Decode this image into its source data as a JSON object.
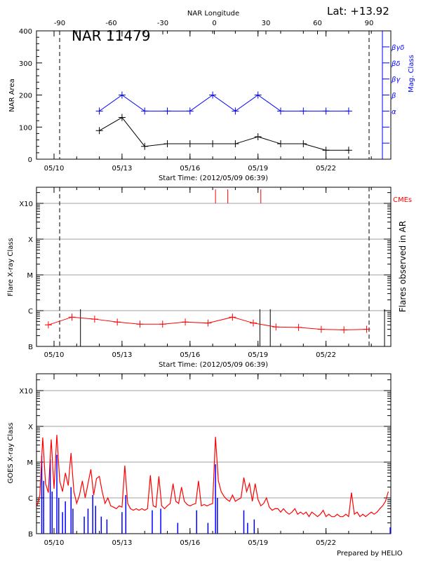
{
  "header": {
    "latitude": "Lat: +13.92",
    "region_label": "NAR 11479"
  },
  "footer": {
    "credit": "Prepared by HELIO"
  },
  "colors": {
    "area": "#000000",
    "mag_class": "#0000ff",
    "flare": "#ff0000",
    "cme": "#ff0000",
    "goes_long": "#ff0000",
    "goes_short": "#0000ff",
    "grid": "#a0a0a0"
  },
  "chart_data": [
    {
      "type": "line",
      "title": "NAR 11479",
      "xlabel": "Start Time: (2012/05/09 06:39)",
      "x_tick_labels": [
        "05/10",
        "05/13",
        "05/16",
        "05/19",
        "05/22"
      ],
      "top_axis": {
        "label": "NAR Longitude",
        "ticks": [
          -90,
          -60,
          -30,
          0,
          30,
          60,
          90
        ]
      },
      "limb_longitudes": [
        -90,
        90
      ],
      "ylabel": "NAR Area",
      "ylim": [
        0,
        400
      ],
      "y_ticks": [
        0,
        100,
        200,
        300,
        400
      ],
      "right_axis": {
        "label": "Mag. Class",
        "classes": [
          "α",
          "β",
          "βγ",
          "βδ",
          "βγδ"
        ]
      },
      "series": [
        {
          "key": "area",
          "x": [
            "05/12 00:00",
            "05/13 00:00",
            "05/14 00:00",
            "05/15 00:00",
            "05/16 00:00",
            "05/17 00:00",
            "05/18 00:00",
            "05/19 00:00",
            "05/20 00:00",
            "05/21 00:00",
            "05/22 00:00",
            "05/23 00:00"
          ],
          "values": [
            89,
            130,
            40,
            48,
            48,
            48,
            48,
            70,
            48,
            48,
            28,
            28
          ]
        },
        {
          "key": "mag_class",
          "x": [
            "05/12 00:00",
            "05/13 00:00",
            "05/14 00:00",
            "05/15 00:00",
            "05/16 00:00",
            "05/17 00:00",
            "05/18 00:00",
            "05/19 00:00",
            "05/20 00:00",
            "05/21 00:00",
            "05/22 00:00",
            "05/23 00:00"
          ],
          "values": [
            "α",
            "β",
            "α",
            "α",
            "α",
            "β",
            "α",
            "β",
            "α",
            "α",
            "α",
            "α"
          ]
        }
      ]
    },
    {
      "type": "line",
      "xlabel": "Start Time: (2012/05/09 06:39)",
      "x_tick_labels": [
        "05/10",
        "05/13",
        "05/16",
        "05/19",
        "05/22"
      ],
      "ylabel": "Flare X-ray Class",
      "right_label": "Flares observed in AR",
      "y_scale": "log",
      "y_tick_labels": [
        "B",
        "C",
        "M",
        "X",
        "X10"
      ],
      "grid": true,
      "series": [
        {
          "key": "flare_background",
          "x": [
            "05/09 18:00",
            "05/10 19:00",
            "05/11 19:00",
            "05/12 19:00",
            "05/13 19:00",
            "05/14 19:00",
            "05/15 19:00",
            "05/16 19:00",
            "05/17 21:00",
            "05/18 19:00",
            "05/19 19:00",
            "05/20 19:00",
            "05/21 19:00",
            "05/22 19:00",
            "05/23 19:00"
          ],
          "values": [
            "B4.0",
            "B6.6",
            "B5.8",
            "B4.8",
            "B4.2",
            "B4.2",
            "B4.8",
            "B4.5",
            "B6.6",
            "B4.5",
            "B3.5",
            "B3.4",
            "B3.0",
            "B2.9",
            "B3.0"
          ]
        }
      ],
      "flares_observed": [
        "05/11 04:00",
        "05/19 02:00",
        "05/19 13:00",
        "05/24 14:00"
      ],
      "cmes": {
        "label": "CMEs",
        "times": [
          "05/17 03:00",
          "05/17 16:00",
          "05/19 03:00"
        ]
      }
    },
    {
      "type": "line",
      "x_tick_labels": [
        "05/10",
        "05/13",
        "05/16",
        "05/19",
        "05/22"
      ],
      "ylabel": "GOES X-ray Class",
      "y_scale": "log",
      "y_tick_labels": [
        "B",
        "C",
        "M",
        "X",
        "X10"
      ],
      "grid": true,
      "goes_long": {
        "start": "05/09 06:00",
        "step_hours": 3,
        "values": [
          "B6.0",
          "C1.2",
          "M4.9",
          "C2.5",
          "C1.4",
          "M4.3",
          "C1.8",
          "M5.8",
          "C3.0",
          "C1.5",
          "C5.0",
          "C2.2",
          "M1.8",
          "C1.5",
          "B7.0",
          "C1.2",
          "C3.0",
          "C1.0",
          "C2.5",
          "C6.3",
          "C1.2",
          "C3.5",
          "C4.0",
          "C1.5",
          "B7.0",
          "C1.0",
          "B6.0",
          "B5.5",
          "B5.0",
          "B6.0",
          "B5.5",
          "C8.0",
          "B7.0",
          "B5.0",
          "B4.5",
          "B5.0",
          "B4.5",
          "B5.0",
          "B4.5",
          "B5.0",
          "C4.3",
          "B6.0",
          "B5.5",
          "C4.0",
          "B6.0",
          "B5.0",
          "B6.0",
          "B7.0",
          "C2.5",
          "B8.0",
          "B7.0",
          "C2.0",
          "B8.0",
          "B6.5",
          "B6.0",
          "B6.5",
          "B7.0",
          "C3.0",
          "B6.0",
          "B6.5",
          "B6.0",
          "B6.5",
          "B7.0",
          "M5.1",
          "C3.0",
          "C1.5",
          "C1.1",
          "B9.0",
          "B8.0",
          "C1.2",
          "B8.0",
          "B9.0",
          "C1.0",
          "C3.7",
          "C1.5",
          "C2.5",
          "B8.0",
          "C2.5",
          "B9.0",
          "B6.0",
          "B7.0",
          "C1.0",
          "B5.5",
          "B4.5",
          "B5.0",
          "B5.0",
          "B4.0",
          "B5.0",
          "B4.0",
          "B3.5",
          "B4.0",
          "B5.0",
          "B3.5",
          "B4.0",
          "B3.5",
          "B4.0",
          "B3.0",
          "B4.0",
          "B3.5",
          "B3.0",
          "B3.5",
          "B4.5",
          "B3.0",
          "B3.5",
          "B3.0",
          "B3.0",
          "B3.5",
          "B3.0",
          "B3.0",
          "B3.5",
          "B3.0",
          "C1.4",
          "B3.5",
          "B4.0",
          "B3.0",
          "B3.5",
          "B3.0",
          "B3.5",
          "B4.0",
          "B3.5",
          "B4.0",
          "B5.0",
          "B6.0",
          "B8.0",
          "C1.5"
        ]
      },
      "goes_short_peaks": [
        [
          "05/09 11:00",
          "M1.5"
        ],
        [
          "05/09 13:00",
          "C3.0"
        ],
        [
          "05/09 20:00",
          "M1.2"
        ],
        [
          "05/09 22:00",
          "C1.5"
        ],
        [
          "05/10 03:00",
          "M1.6"
        ],
        [
          "05/10 05:00",
          "C1.0"
        ],
        [
          "05/10 09:00",
          "B4.0"
        ],
        [
          "05/10 12:00",
          "B8.0"
        ],
        [
          "05/10 18:00",
          "C2.0"
        ],
        [
          "05/10 20:00",
          "B5.0"
        ],
        [
          "05/11 08:00",
          "B3.0"
        ],
        [
          "05/11 12:00",
          "B5.0"
        ],
        [
          "05/11 17:00",
          "C1.2"
        ],
        [
          "05/11 20:00",
          "B6.0"
        ],
        [
          "05/12 02:00",
          "B3.0"
        ],
        [
          "05/12 08:00",
          "B2.5"
        ],
        [
          "05/13 00:00",
          "B4.0"
        ],
        [
          "05/13 04:00",
          "C1.2"
        ],
        [
          "05/14 08:00",
          "B4.5"
        ],
        [
          "05/14 17:00",
          "B5.0"
        ],
        [
          "05/15 11:00",
          "B2.0"
        ],
        [
          "05/16 07:00",
          "B4.5"
        ],
        [
          "05/16 19:00",
          "B2.0"
        ],
        [
          "05/17 03:00",
          "C8.7"
        ],
        [
          "05/17 05:00",
          "C1.0"
        ],
        [
          "05/18 09:00",
          "B4.5"
        ],
        [
          "05/18 13:00",
          "B2.0"
        ],
        [
          "05/18 20:00",
          "B2.5"
        ],
        [
          "05/24 20:00",
          "B1.5"
        ]
      ]
    }
  ]
}
